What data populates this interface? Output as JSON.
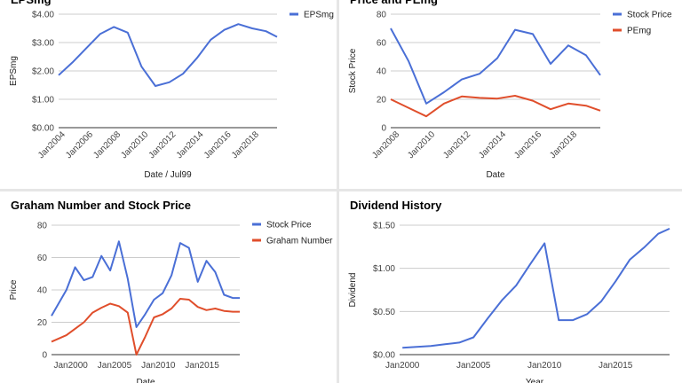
{
  "charts": [
    {
      "panel_id": "panel-eps",
      "title": "EPSmg",
      "xlabel": "Date / Jul99",
      "ylabel": "EPSmg",
      "y_ticks": [
        "$0.00",
        "$1.00",
        "$2.00",
        "$3.00",
        "$4.00"
      ],
      "x_ticks": [
        "Jan2004",
        "Jan2006",
        "Jan2008",
        "Jan2010",
        "Jan2012",
        "Jan2014",
        "Jan2016",
        "Jan2018"
      ]
    },
    {
      "panel_id": "panel-price-pe",
      "title": "Price and PEmg",
      "xlabel": "Date",
      "ylabel": "Stock Price",
      "y_ticks": [
        "0",
        "20",
        "40",
        "60",
        "80"
      ],
      "x_ticks": [
        "Jan2008",
        "Jan2010",
        "Jan2012",
        "Jan2014",
        "Jan2016",
        "Jan2018"
      ]
    },
    {
      "panel_id": "panel-graham",
      "title": "Graham Number and Stock Price",
      "xlabel": "Date",
      "ylabel": "Price",
      "y_ticks": [
        "0",
        "20",
        "40",
        "60",
        "80"
      ],
      "x_ticks": [
        "Jan2000",
        "Jan2005",
        "Jan2010",
        "Jan2015"
      ]
    },
    {
      "panel_id": "panel-dividend",
      "title": "Dividend History",
      "xlabel": "Year",
      "ylabel": "Dividend",
      "y_ticks": [
        "$0.00",
        "$0.50",
        "$1.00",
        "$1.50"
      ],
      "x_ticks": [
        "Jan2000",
        "Jan2005",
        "Jan2010",
        "Jan2015"
      ]
    }
  ],
  "chart_data": [
    {
      "type": "line",
      "title": "EPSmg",
      "xlabel": "Date / Jul99",
      "ylabel": "EPSmg",
      "xlim": [
        2003.5,
        2019.3
      ],
      "ylim": [
        0,
        4
      ],
      "grid": true,
      "legend": "right",
      "series": [
        {
          "name": "EPSmg",
          "color": "#4a6fd6",
          "x": [
            2003.5,
            2004.5,
            2005.5,
            2006.5,
            2007.5,
            2008.5,
            2009.5,
            2010.5,
            2011.5,
            2012.5,
            2013.5,
            2014.5,
            2015.5,
            2016.5,
            2017.5,
            2018.5,
            2019.3
          ],
          "y": [
            1.85,
            2.3,
            2.8,
            3.3,
            3.55,
            3.35,
            2.15,
            1.47,
            1.6,
            1.9,
            2.45,
            3.1,
            3.45,
            3.65,
            3.5,
            3.4,
            3.2
          ]
        }
      ]
    },
    {
      "type": "line",
      "title": "Price and PEmg",
      "xlabel": "Date",
      "ylabel": "Stock Price",
      "xlim": [
        2007.5,
        2019.3
      ],
      "ylim": [
        0,
        80
      ],
      "grid": true,
      "legend": "right",
      "series": [
        {
          "name": "Stock Price",
          "color": "#4a6fd6",
          "x": [
            2007.5,
            2008.5,
            2009.5,
            2010.5,
            2011.5,
            2012.5,
            2013.5,
            2014.5,
            2015.5,
            2016.5,
            2017.5,
            2018.5,
            2019.3
          ],
          "y": [
            70,
            47,
            17,
            25,
            34,
            38,
            49,
            69,
            66,
            45,
            58,
            51,
            37
          ]
        },
        {
          "name": "PEmg",
          "color": "#e04e2b",
          "x": [
            2007.5,
            2008.5,
            2009.5,
            2010.5,
            2011.5,
            2012.5,
            2013.5,
            2014.5,
            2015.5,
            2016.5,
            2017.5,
            2018.5,
            2019.3
          ],
          "y": [
            20,
            14,
            8,
            17,
            22,
            21,
            20.5,
            22.5,
            19,
            13,
            17,
            15.5,
            12
          ]
        }
      ]
    },
    {
      "type": "line",
      "title": "Graham Number and Stock Price",
      "xlabel": "Date",
      "ylabel": "Price",
      "xlim": [
        1997.8,
        2019.3
      ],
      "ylim": [
        0,
        80
      ],
      "grid": true,
      "legend": "right",
      "series": [
        {
          "name": "Stock Price",
          "color": "#4a6fd6",
          "x": [
            1997.8,
            1999.5,
            2000.5,
            2001.5,
            2002.5,
            2003.5,
            2004.5,
            2005.5,
            2006.5,
            2007.5,
            2008.5,
            2009.5,
            2010.5,
            2011.5,
            2012.5,
            2013.5,
            2014.5,
            2015.5,
            2016.5,
            2017.5,
            2018.5,
            2019.3
          ],
          "y": [
            24,
            40,
            54,
            46,
            48,
            61,
            52,
            70,
            47,
            17,
            25,
            34,
            38,
            49,
            69,
            66,
            45,
            58,
            51,
            37,
            35,
            35
          ]
        },
        {
          "name": "Graham Number",
          "color": "#e04e2b",
          "x": [
            1997.8,
            1999.5,
            2000.5,
            2001.5,
            2002.5,
            2003.5,
            2004.5,
            2005.5,
            2006.5,
            2007.5,
            2008.5,
            2009.5,
            2010.5,
            2011.5,
            2012.5,
            2013.5,
            2014.5,
            2015.5,
            2016.5,
            2017.5,
            2018.5,
            2019.3
          ],
          "y": [
            8,
            12,
            16,
            20,
            26,
            29,
            31.5,
            30,
            26,
            0,
            11,
            23,
            25,
            28.5,
            34.5,
            34,
            29.5,
            27.5,
            28.5,
            27,
            26.5,
            26.5
          ]
        }
      ]
    },
    {
      "type": "line",
      "title": "Dividend History",
      "xlabel": "Year",
      "ylabel": "Dividend",
      "xlim": [
        1999.8,
        2018.8
      ],
      "ylim": [
        0,
        1.5
      ],
      "grid": true,
      "legend": "none",
      "series": [
        {
          "name": "",
          "color": "#4a6fd6",
          "x": [
            2000,
            2001,
            2002,
            2003,
            2004,
            2005,
            2006,
            2007,
            2008,
            2009,
            2010,
            2011,
            2012,
            2013,
            2014,
            2015,
            2016,
            2017,
            2018,
            2018.8
          ],
          "y": [
            0.08,
            0.09,
            0.1,
            0.12,
            0.14,
            0.2,
            0.42,
            0.63,
            0.8,
            1.05,
            1.29,
            0.4,
            0.4,
            0.47,
            0.62,
            0.85,
            1.1,
            1.24,
            1.4,
            1.46
          ]
        }
      ]
    }
  ]
}
